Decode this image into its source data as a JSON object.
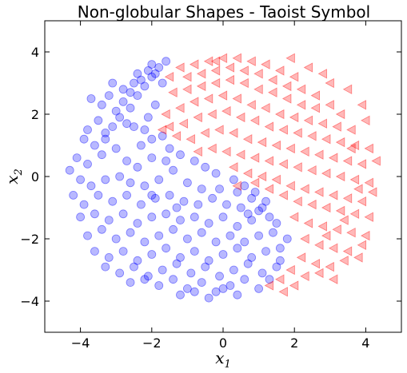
{
  "chart_data": {
    "type": "scatter",
    "title": "Non-globular Shapes - Taoist Symbol",
    "xlabel": {
      "base": "x",
      "sub": "1"
    },
    "ylabel": {
      "base": "x",
      "sub": "2"
    },
    "xlim": [
      -5,
      5
    ],
    "ylim": [
      -5,
      5
    ],
    "xticks": [
      -4,
      -2,
      0,
      2,
      4
    ],
    "yticks": [
      -4,
      -2,
      0,
      2,
      4
    ],
    "xtick_labels": [
      "−4",
      "−2",
      "0",
      "2",
      "4"
    ],
    "ytick_labels": [
      "−4",
      "−2",
      "0",
      "2",
      "4"
    ],
    "grid": false,
    "series": [
      {
        "marker": "circle",
        "color": "#0000ff",
        "alpha": 0.28,
        "points": [
          [
            -1.6,
            3.7
          ],
          [
            -1.8,
            3.5
          ],
          [
            -2.1,
            3.4
          ],
          [
            -2.0,
            3.6
          ],
          [
            -2.3,
            3.1
          ],
          [
            -2.5,
            3.0
          ],
          [
            -2.2,
            2.9
          ],
          [
            -2.6,
            2.7
          ],
          [
            -2.0,
            3.2
          ],
          [
            -1.9,
            3.3
          ],
          [
            -3.7,
            2.5
          ],
          [
            -3.4,
            2.3
          ],
          [
            -3.2,
            2.6
          ],
          [
            -2.8,
            2.4
          ],
          [
            -3.0,
            2.1
          ],
          [
            -2.6,
            2.2
          ],
          [
            -2.4,
            2.6
          ],
          [
            -2.9,
            1.9
          ],
          [
            -3.5,
            1.8
          ],
          [
            -3.1,
            1.6
          ],
          [
            -3.8,
            1.5
          ],
          [
            -2.7,
            1.7
          ],
          [
            -3.3,
            1.4
          ],
          [
            -3.9,
            1.2
          ],
          [
            -3.6,
            1.0
          ],
          [
            -2.5,
            1.6
          ],
          [
            -2.2,
            1.5
          ],
          [
            -2.0,
            1.2
          ],
          [
            -1.7,
            1.3
          ],
          [
            -2.3,
            1.0
          ],
          [
            -4.1,
            0.6
          ],
          [
            -3.8,
            0.4
          ],
          [
            -3.4,
            0.7
          ],
          [
            -3.0,
            0.9
          ],
          [
            -2.7,
            0.5
          ],
          [
            -2.4,
            0.3
          ],
          [
            -2.0,
            0.6
          ],
          [
            -1.6,
            0.5
          ],
          [
            -1.2,
            0.7
          ],
          [
            -0.8,
            0.5
          ],
          [
            -1.4,
            0.2
          ],
          [
            -0.5,
            0.3
          ],
          [
            -0.2,
            0.1
          ],
          [
            0.3,
            -0.1
          ],
          [
            0.6,
            -0.3
          ],
          [
            0.9,
            -0.5
          ],
          [
            1.2,
            -0.8
          ],
          [
            1.0,
            -1.1
          ],
          [
            0.8,
            -0.7
          ],
          [
            0.4,
            -0.5
          ],
          [
            -4.3,
            0.2
          ],
          [
            -4.0,
            -0.1
          ],
          [
            -3.7,
            -0.3
          ],
          [
            -3.3,
            -0.1
          ],
          [
            -2.9,
            0.0
          ],
          [
            -2.6,
            -0.2
          ],
          [
            -2.2,
            -0.3
          ],
          [
            -1.8,
            -0.1
          ],
          [
            -1.0,
            -0.2
          ],
          [
            -0.6,
            -0.4
          ],
          [
            -4.2,
            -0.6
          ],
          [
            -3.9,
            -0.9
          ],
          [
            -3.5,
            -0.6
          ],
          [
            -3.1,
            -0.8
          ],
          [
            -2.7,
            -0.6
          ],
          [
            -2.3,
            -0.9
          ],
          [
            -1.9,
            -0.7
          ],
          [
            -1.5,
            -0.6
          ],
          [
            -1.1,
            -0.8
          ],
          [
            -0.7,
            -0.9
          ],
          [
            -0.3,
            -0.7
          ],
          [
            0.1,
            -0.9
          ],
          [
            0.5,
            -1.0
          ],
          [
            -4.0,
            -1.3
          ],
          [
            -3.6,
            -1.2
          ],
          [
            -3.2,
            -1.4
          ],
          [
            -2.8,
            -1.2
          ],
          [
            -2.4,
            -1.5
          ],
          [
            -2.0,
            -1.3
          ],
          [
            -1.6,
            -1.2
          ],
          [
            -1.2,
            -1.4
          ],
          [
            -0.8,
            -1.3
          ],
          [
            -0.4,
            -1.5
          ],
          [
            0.0,
            -1.3
          ],
          [
            0.4,
            -1.6
          ],
          [
            0.8,
            -1.4
          ],
          [
            1.3,
            -1.3
          ],
          [
            -3.8,
            -1.9
          ],
          [
            -3.4,
            -1.7
          ],
          [
            -3.0,
            -2.0
          ],
          [
            -2.6,
            -1.8
          ],
          [
            -2.2,
            -2.1
          ],
          [
            -1.8,
            -1.9
          ],
          [
            -1.4,
            -1.7
          ],
          [
            -1.0,
            -2.0
          ],
          [
            -0.6,
            -1.8
          ],
          [
            -0.2,
            -2.1
          ],
          [
            0.2,
            -1.9
          ],
          [
            0.6,
            -2.1
          ],
          [
            1.0,
            -1.9
          ],
          [
            1.4,
            -1.8
          ],
          [
            -3.6,
            -2.4
          ],
          [
            -3.2,
            -2.6
          ],
          [
            -2.8,
            -2.4
          ],
          [
            -2.4,
            -2.7
          ],
          [
            -2.0,
            -2.5
          ],
          [
            -1.6,
            -2.3
          ],
          [
            -1.2,
            -2.6
          ],
          [
            -0.8,
            -2.4
          ],
          [
            -0.4,
            -2.7
          ],
          [
            0.0,
            -2.5
          ],
          [
            0.4,
            -2.3
          ],
          [
            0.8,
            -2.6
          ],
          [
            1.2,
            -2.4
          ],
          [
            1.6,
            -2.3
          ],
          [
            -3.3,
            -2.9
          ],
          [
            -2.9,
            -3.1
          ],
          [
            -2.5,
            -2.9
          ],
          [
            -2.1,
            -3.2
          ],
          [
            -1.7,
            -3.0
          ],
          [
            -1.3,
            -2.8
          ],
          [
            -0.9,
            -3.1
          ],
          [
            -0.5,
            -2.9
          ],
          [
            -0.1,
            -3.2
          ],
          [
            0.3,
            -3.0
          ],
          [
            0.7,
            -2.8
          ],
          [
            1.1,
            -3.1
          ],
          [
            1.5,
            -2.9
          ],
          [
            -2.6,
            -3.4
          ],
          [
            -2.2,
            -3.3
          ],
          [
            -1.8,
            -3.5
          ],
          [
            -1.4,
            -3.3
          ],
          [
            -1.0,
            -3.6
          ],
          [
            -0.6,
            -3.4
          ],
          [
            -0.2,
            -3.7
          ],
          [
            0.2,
            -3.5
          ],
          [
            0.6,
            -3.3
          ],
          [
            1.0,
            -3.6
          ],
          [
            1.3,
            -3.3
          ],
          [
            -1.2,
            -3.8
          ],
          [
            -0.4,
            -3.9
          ],
          [
            0.4,
            -3.8
          ],
          [
            0.0,
            -3.6
          ],
          [
            -0.8,
            -3.7
          ],
          [
            1.6,
            -2.7
          ],
          [
            1.8,
            -2.0
          ],
          [
            1.5,
            -1.5
          ],
          [
            1.1,
            -1.0
          ],
          [
            0.7,
            -1.2
          ],
          [
            -1.5,
            0.9
          ],
          [
            -2.1,
            1.9
          ],
          [
            -1.9,
            2.3
          ],
          [
            -2.8,
            2.8
          ],
          [
            -3.1,
            3.0
          ],
          [
            -2.4,
            3.3
          ],
          [
            -1.7,
            3.0
          ],
          [
            -3.3,
            1.2
          ],
          [
            -2.0,
            -0.6
          ],
          [
            -1.3,
            -1.0
          ],
          [
            -0.1,
            -0.4
          ]
        ]
      },
      {
        "marker": "triangle-left",
        "color": "#ff0000",
        "alpha": 0.28,
        "points": [
          [
            -1.5,
            3.2
          ],
          [
            -1.2,
            3.5
          ],
          [
            -0.8,
            3.6
          ],
          [
            -0.4,
            3.7
          ],
          [
            0.0,
            3.8
          ],
          [
            0.4,
            3.8
          ],
          [
            0.8,
            3.7
          ],
          [
            1.2,
            3.6
          ],
          [
            1.6,
            3.4
          ],
          [
            2.0,
            3.2
          ],
          [
            -1.0,
            3.2
          ],
          [
            -0.6,
            3.3
          ],
          [
            -0.2,
            3.4
          ],
          [
            0.2,
            3.5
          ],
          [
            0.6,
            3.4
          ],
          [
            1.0,
            3.3
          ],
          [
            1.4,
            3.1
          ],
          [
            1.8,
            2.9
          ],
          [
            2.2,
            2.8
          ],
          [
            2.6,
            2.6
          ],
          [
            -1.4,
            2.7
          ],
          [
            -1.0,
            2.8
          ],
          [
            -0.6,
            2.9
          ],
          [
            -0.2,
            3.0
          ],
          [
            0.2,
            3.1
          ],
          [
            0.6,
            3.0
          ],
          [
            1.0,
            2.8
          ],
          [
            1.4,
            2.7
          ],
          [
            1.8,
            2.5
          ],
          [
            2.2,
            2.3
          ],
          [
            2.6,
            2.2
          ],
          [
            3.0,
            2.3
          ],
          [
            3.3,
            2.0
          ],
          [
            -1.2,
            2.2
          ],
          [
            -0.8,
            2.4
          ],
          [
            -0.4,
            2.5
          ],
          [
            0.0,
            2.6
          ],
          [
            0.4,
            2.5
          ],
          [
            0.8,
            2.3
          ],
          [
            1.2,
            2.2
          ],
          [
            1.6,
            2.0
          ],
          [
            2.0,
            1.9
          ],
          [
            2.4,
            1.8
          ],
          [
            2.8,
            1.7
          ],
          [
            3.2,
            1.6
          ],
          [
            3.6,
            1.5
          ],
          [
            -1.5,
            1.6
          ],
          [
            -1.1,
            1.7
          ],
          [
            -0.7,
            1.9
          ],
          [
            -0.3,
            2.0
          ],
          [
            0.1,
            2.1
          ],
          [
            0.5,
            1.9
          ],
          [
            0.9,
            1.8
          ],
          [
            1.3,
            1.6
          ],
          [
            1.7,
            1.5
          ],
          [
            2.1,
            1.4
          ],
          [
            2.5,
            1.3
          ],
          [
            2.9,
            1.2
          ],
          [
            3.3,
            1.1
          ],
          [
            3.7,
            1.0
          ],
          [
            -1.3,
            1.3
          ],
          [
            -0.9,
            1.2
          ],
          [
            -0.5,
            1.4
          ],
          [
            -0.1,
            1.5
          ],
          [
            0.3,
            1.4
          ],
          [
            0.7,
            1.2
          ],
          [
            1.1,
            1.1
          ],
          [
            1.5,
            1.0
          ],
          [
            1.9,
            0.9
          ],
          [
            2.3,
            0.8
          ],
          [
            2.7,
            0.7
          ],
          [
            3.1,
            0.6
          ],
          [
            3.5,
            0.5
          ],
          [
            3.9,
            0.4
          ],
          [
            -0.7,
            0.8
          ],
          [
            -0.3,
            0.9
          ],
          [
            0.1,
            0.8
          ],
          [
            0.5,
            0.7
          ],
          [
            0.9,
            0.6
          ],
          [
            1.3,
            0.5
          ],
          [
            1.7,
            0.4
          ],
          [
            2.1,
            0.3
          ],
          [
            2.5,
            0.2
          ],
          [
            2.9,
            0.1
          ],
          [
            3.3,
            0.0
          ],
          [
            3.7,
            -0.1
          ],
          [
            4.1,
            -0.2
          ],
          [
            0.3,
            0.3
          ],
          [
            0.7,
            0.1
          ],
          [
            1.1,
            0.0
          ],
          [
            1.5,
            -0.1
          ],
          [
            1.9,
            -0.3
          ],
          [
            2.3,
            -0.4
          ],
          [
            2.7,
            -0.5
          ],
          [
            3.1,
            -0.6
          ],
          [
            3.5,
            -0.7
          ],
          [
            3.9,
            -0.8
          ],
          [
            4.2,
            -0.5
          ],
          [
            1.7,
            -0.6
          ],
          [
            2.1,
            -0.8
          ],
          [
            2.5,
            -0.9
          ],
          [
            2.9,
            -1.0
          ],
          [
            3.3,
            -1.1
          ],
          [
            3.7,
            -1.2
          ],
          [
            4.1,
            -1.3
          ],
          [
            2.0,
            -1.3
          ],
          [
            2.4,
            -1.5
          ],
          [
            2.8,
            -1.6
          ],
          [
            3.2,
            -1.7
          ],
          [
            3.6,
            -1.8
          ],
          [
            4.0,
            -1.9
          ],
          [
            2.3,
            -2.0
          ],
          [
            2.7,
            -2.2
          ],
          [
            3.1,
            -2.3
          ],
          [
            3.5,
            -2.4
          ],
          [
            3.9,
            -2.2
          ],
          [
            2.2,
            -2.6
          ],
          [
            2.6,
            -2.8
          ],
          [
            3.0,
            -2.9
          ],
          [
            3.4,
            -2.7
          ],
          [
            3.8,
            -2.6
          ],
          [
            1.9,
            -3.0
          ],
          [
            2.3,
            -3.2
          ],
          [
            2.7,
            -3.1
          ],
          [
            3.1,
            -3.3
          ],
          [
            1.6,
            -3.3
          ],
          [
            2.0,
            -3.5
          ],
          [
            1.3,
            -3.5
          ],
          [
            1.7,
            -3.7
          ],
          [
            2.9,
            -1.9
          ],
          [
            3.4,
            -1.4
          ],
          [
            3.8,
            -0.4
          ],
          [
            4.3,
            0.5
          ],
          [
            4.0,
            1.8
          ],
          [
            3.5,
            2.8
          ],
          [
            3.0,
            3.0
          ],
          [
            2.4,
            3.5
          ],
          [
            1.9,
            3.8
          ],
          [
            -1.6,
            2.0
          ],
          [
            -1.7,
            1.5
          ],
          [
            0.4,
            -0.3
          ],
          [
            0.9,
            -0.2
          ],
          [
            1.3,
            -0.4
          ],
          [
            3.6,
            0.9
          ],
          [
            4.1,
            0.9
          ],
          [
            2.8,
            3.3
          ],
          [
            3.9,
            2.3
          ],
          [
            -0.2,
            3.7
          ]
        ]
      }
    ]
  }
}
